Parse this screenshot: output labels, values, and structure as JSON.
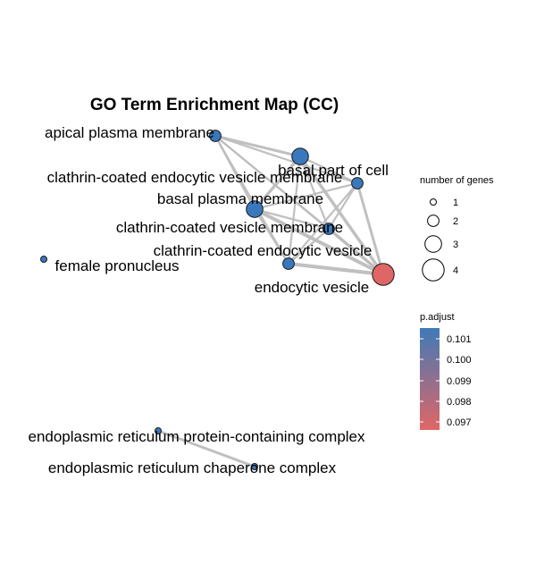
{
  "title": "GO Term Enrichment Map (CC)",
  "nodes": [
    {
      "id": "apical",
      "label": "apical plasma membrane",
      "size": 2,
      "p_adjust": 0.1015
    },
    {
      "id": "basal_part",
      "label": "basal part of cell",
      "size": 3,
      "p_adjust": 0.1015
    },
    {
      "id": "ccv_membrane",
      "label": "clathrin-coated endocytic vesicle membrane",
      "size": 2,
      "p_adjust": 0.1015
    },
    {
      "id": "basal_pm",
      "label": "basal plasma membrane",
      "size": 3,
      "p_adjust": 0.1015
    },
    {
      "id": "cv_membrane",
      "label": "clathrin-coated vesicle membrane",
      "size": 2,
      "p_adjust": 0.1015
    },
    {
      "id": "cc_endo_vesicle",
      "label": "clathrin-coated endocytic vesicle",
      "size": 2,
      "p_adjust": 0.1015
    },
    {
      "id": "endo_vesicle",
      "label": "endocytic vesicle",
      "size": 4,
      "p_adjust": 0.0965
    },
    {
      "id": "female_pron",
      "label": "female pronucleus",
      "size": 1,
      "p_adjust": 0.1015
    },
    {
      "id": "er_protein_complex",
      "label": "endoplasmic reticulum protein-containing complex",
      "size": 1,
      "p_adjust": 0.1015
    },
    {
      "id": "er_chaperone",
      "label": "endoplasmic reticulum chaperone complex",
      "size": 1,
      "p_adjust": 0.1015
    }
  ],
  "edges": [
    [
      "apical",
      "basal_part"
    ],
    [
      "apical",
      "ccv_membrane"
    ],
    [
      "apical",
      "basal_pm"
    ],
    [
      "apical",
      "cv_membrane"
    ],
    [
      "apical",
      "cc_endo_vesicle"
    ],
    [
      "apical",
      "endo_vesicle"
    ],
    [
      "basal_part",
      "ccv_membrane"
    ],
    [
      "basal_part",
      "basal_pm"
    ],
    [
      "basal_part",
      "cv_membrane"
    ],
    [
      "basal_part",
      "cc_endo_vesicle"
    ],
    [
      "basal_part",
      "endo_vesicle"
    ],
    [
      "ccv_membrane",
      "basal_pm"
    ],
    [
      "ccv_membrane",
      "cv_membrane"
    ],
    [
      "ccv_membrane",
      "cc_endo_vesicle"
    ],
    [
      "ccv_membrane",
      "endo_vesicle"
    ],
    [
      "basal_pm",
      "cv_membrane"
    ],
    [
      "basal_pm",
      "cc_endo_vesicle"
    ],
    [
      "basal_pm",
      "endo_vesicle"
    ],
    [
      "cv_membrane",
      "cc_endo_vesicle"
    ],
    [
      "cv_membrane",
      "endo_vesicle"
    ],
    [
      "cc_endo_vesicle",
      "endo_vesicle"
    ],
    [
      "er_protein_complex",
      "er_chaperone"
    ]
  ],
  "legend_size": {
    "title": "number of genes",
    "items": [
      {
        "label": "1",
        "size": 1
      },
      {
        "label": "2",
        "size": 2
      },
      {
        "label": "3",
        "size": 3
      },
      {
        "label": "4",
        "size": 4
      }
    ]
  },
  "legend_color": {
    "title": "p.adjust",
    "ticks": [
      "0.101",
      "0.100",
      "0.099",
      "0.098",
      "0.097"
    ],
    "color_high": "#3f7ab7",
    "color_low": "#e06666"
  },
  "colors": {
    "node_blue": "#3a78bd",
    "node_red": "#e06666",
    "edge_gray": "#bdbdbd"
  }
}
